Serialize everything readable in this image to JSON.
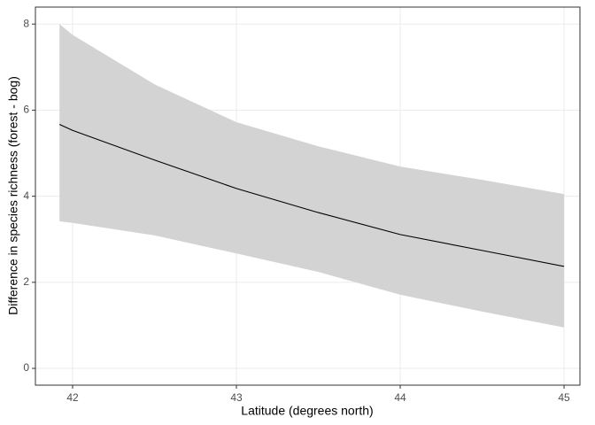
{
  "chart_data": {
    "type": "ribbon-line",
    "x_label": "Latitude (degrees north)",
    "y_label": "Difference in species richness (forest - bog)",
    "x": [
      41.92,
      42,
      42.5,
      43,
      43.5,
      44,
      44.5,
      45
    ],
    "values": [
      5.67,
      5.53,
      4.84,
      4.18,
      3.62,
      3.11,
      2.74,
      2.37
    ],
    "upper": [
      8.0,
      7.75,
      6.6,
      5.72,
      5.16,
      4.69,
      4.38,
      4.05
    ],
    "lower": [
      3.42,
      3.38,
      3.09,
      2.67,
      2.24,
      1.71,
      1.32,
      0.95
    ],
    "color": "#000000",
    "ribbon_color": "#d3d3d3",
    "xlim": [
      41.773,
      45.097
    ],
    "ylim": [
      -0.39,
      8.395
    ],
    "xticks": [
      42,
      43,
      44,
      45
    ],
    "yticks": [
      0,
      2,
      4,
      6,
      8
    ],
    "grid": true
  }
}
